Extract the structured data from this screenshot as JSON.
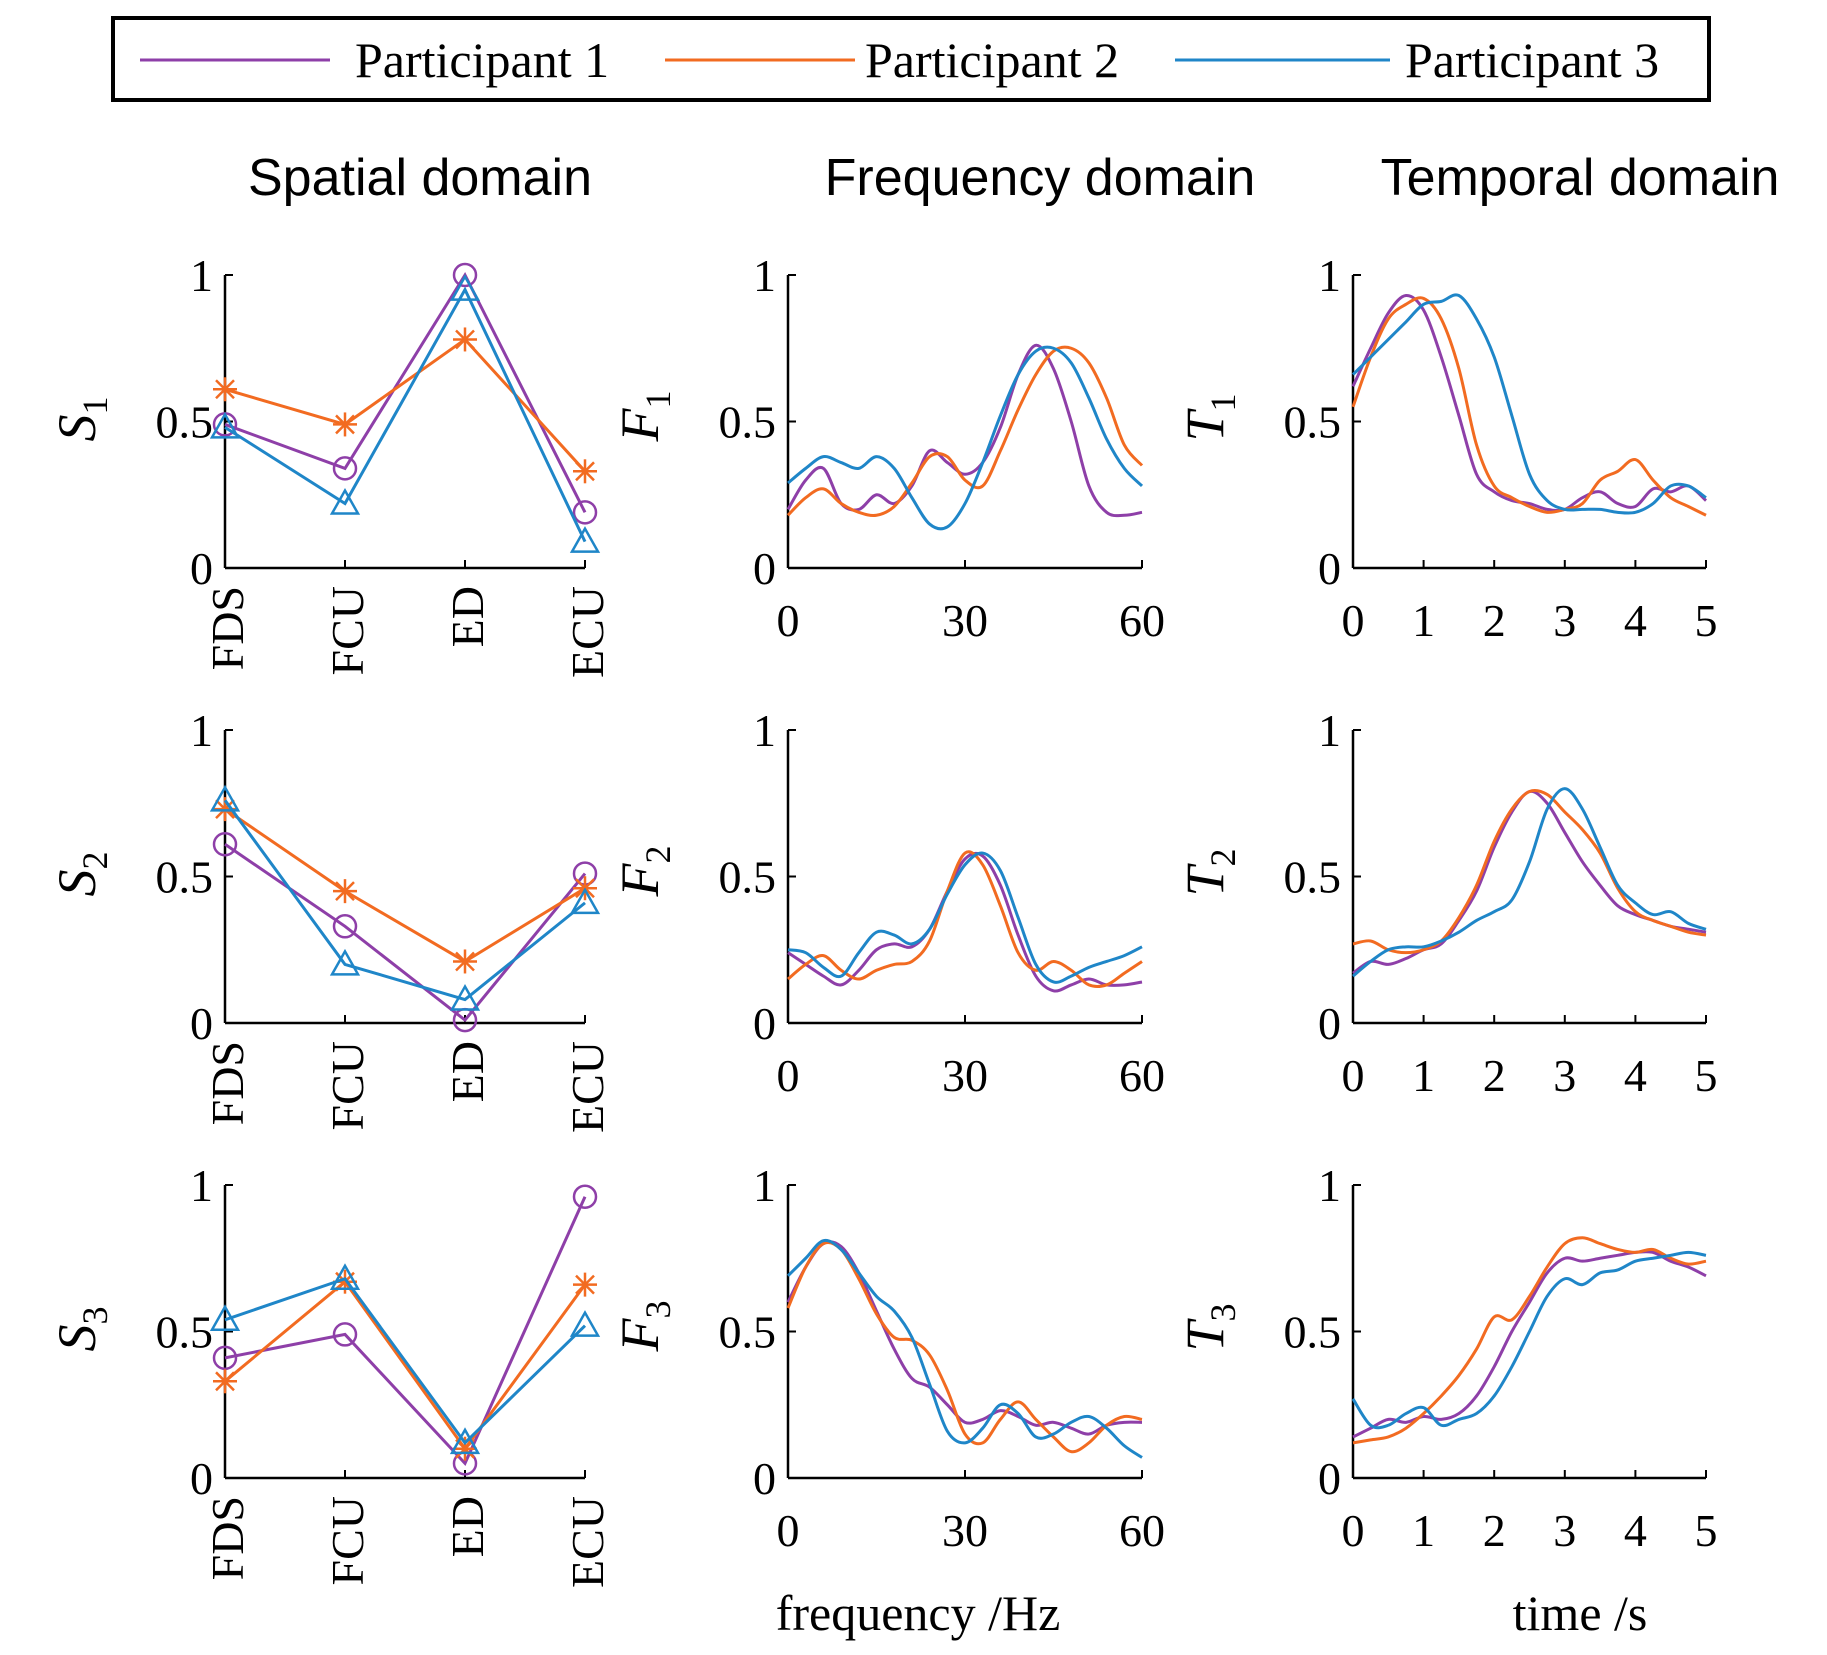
{
  "colors": {
    "p1": "#8e3fa8",
    "p2": "#f26b21",
    "p3": "#1f86c8",
    "axis": "#000000"
  },
  "legend": {
    "entries": [
      "Participant 1",
      "Participant 2",
      "Participant 3"
    ]
  },
  "column_titles": [
    "Spatial domain",
    "Frequency domain",
    "Temporal domain"
  ],
  "x_labels": {
    "frequency": "frequency /Hz",
    "time": "time /s"
  },
  "chart_data": [
    {
      "id": "S1",
      "type": "line",
      "domain": "spatial",
      "ylabel": "S",
      "ylabel_sub": "1",
      "ylim": [
        0,
        1
      ],
      "yticks": [
        "0",
        "0.5",
        "1"
      ],
      "categories": [
        "FDS",
        "FCU",
        "ED",
        "ECU"
      ],
      "series": [
        {
          "name": "Participant 1",
          "marker": "circle",
          "values": [
            0.49,
            0.34,
            1.0,
            0.19
          ]
        },
        {
          "name": "Participant 2",
          "marker": "asterisk",
          "values": [
            0.61,
            0.49,
            0.78,
            0.33
          ]
        },
        {
          "name": "Participant 3",
          "marker": "triangle",
          "values": [
            0.48,
            0.22,
            0.95,
            0.09
          ]
        }
      ]
    },
    {
      "id": "S2",
      "type": "line",
      "domain": "spatial",
      "ylabel": "S",
      "ylabel_sub": "2",
      "ylim": [
        0,
        1
      ],
      "yticks": [
        "0",
        "0.5",
        "1"
      ],
      "categories": [
        "FDS",
        "FCU",
        "ED",
        "ECU"
      ],
      "series": [
        {
          "name": "Participant 1",
          "marker": "circle",
          "values": [
            0.61,
            0.33,
            0.01,
            0.51
          ]
        },
        {
          "name": "Participant 2",
          "marker": "asterisk",
          "values": [
            0.73,
            0.45,
            0.21,
            0.46
          ]
        },
        {
          "name": "Participant 3",
          "marker": "triangle",
          "values": [
            0.76,
            0.2,
            0.08,
            0.41
          ]
        }
      ]
    },
    {
      "id": "S3",
      "type": "line",
      "domain": "spatial",
      "ylabel": "S",
      "ylabel_sub": "3",
      "ylim": [
        0,
        1
      ],
      "yticks": [
        "0",
        "0.5",
        "1"
      ],
      "categories": [
        "FDS",
        "FCU",
        "ED",
        "ECU"
      ],
      "series": [
        {
          "name": "Participant 1",
          "marker": "circle",
          "values": [
            0.41,
            0.49,
            0.05,
            0.96
          ]
        },
        {
          "name": "Participant 2",
          "marker": "asterisk",
          "values": [
            0.33,
            0.67,
            0.1,
            0.66
          ]
        },
        {
          "name": "Participant 3",
          "marker": "triangle",
          "values": [
            0.54,
            0.68,
            0.12,
            0.52
          ]
        }
      ]
    },
    {
      "id": "F1",
      "type": "line",
      "domain": "frequency",
      "ylabel": "F",
      "ylabel_sub": "1",
      "ylim": [
        0,
        1
      ],
      "xlim": [
        0,
        60
      ],
      "yticks": [
        "0",
        "0.5",
        "1"
      ],
      "xticks": [
        0,
        30,
        60
      ],
      "x": [
        0,
        3,
        6,
        9,
        12,
        15,
        18,
        21,
        24,
        27,
        30,
        33,
        36,
        39,
        42,
        45,
        48,
        51,
        54,
        57,
        60
      ],
      "series": [
        {
          "name": "Participant 1",
          "values": [
            0.2,
            0.3,
            0.34,
            0.22,
            0.2,
            0.25,
            0.22,
            0.28,
            0.4,
            0.36,
            0.32,
            0.36,
            0.48,
            0.66,
            0.76,
            0.68,
            0.5,
            0.28,
            0.19,
            0.18,
            0.19
          ]
        },
        {
          "name": "Participant 2",
          "values": [
            0.18,
            0.24,
            0.27,
            0.22,
            0.19,
            0.18,
            0.21,
            0.29,
            0.38,
            0.38,
            0.3,
            0.28,
            0.4,
            0.54,
            0.66,
            0.74,
            0.75,
            0.7,
            0.58,
            0.42,
            0.35
          ]
        },
        {
          "name": "Participant 3",
          "values": [
            0.29,
            0.34,
            0.38,
            0.36,
            0.34,
            0.38,
            0.34,
            0.24,
            0.15,
            0.14,
            0.22,
            0.36,
            0.52,
            0.66,
            0.74,
            0.75,
            0.7,
            0.58,
            0.44,
            0.34,
            0.28
          ]
        }
      ]
    },
    {
      "id": "F2",
      "type": "line",
      "domain": "frequency",
      "ylabel": "F",
      "ylabel_sub": "2",
      "ylim": [
        0,
        1
      ],
      "xlim": [
        0,
        60
      ],
      "yticks": [
        "0",
        "0.5",
        "1"
      ],
      "xticks": [
        0,
        30,
        60
      ],
      "x": [
        0,
        3,
        6,
        9,
        12,
        15,
        18,
        21,
        24,
        27,
        30,
        33,
        36,
        39,
        42,
        45,
        48,
        51,
        54,
        57,
        60
      ],
      "series": [
        {
          "name": "Participant 1",
          "values": [
            0.24,
            0.2,
            0.16,
            0.13,
            0.18,
            0.25,
            0.27,
            0.26,
            0.32,
            0.45,
            0.56,
            0.57,
            0.47,
            0.3,
            0.16,
            0.11,
            0.13,
            0.15,
            0.13,
            0.13,
            0.14
          ]
        },
        {
          "name": "Participant 2",
          "values": [
            0.15,
            0.2,
            0.23,
            0.18,
            0.15,
            0.18,
            0.2,
            0.21,
            0.28,
            0.45,
            0.58,
            0.54,
            0.4,
            0.24,
            0.18,
            0.21,
            0.18,
            0.13,
            0.13,
            0.17,
            0.21
          ]
        },
        {
          "name": "Participant 3",
          "values": [
            0.25,
            0.24,
            0.19,
            0.16,
            0.24,
            0.31,
            0.3,
            0.27,
            0.32,
            0.44,
            0.54,
            0.58,
            0.52,
            0.36,
            0.2,
            0.14,
            0.16,
            0.19,
            0.21,
            0.23,
            0.26
          ]
        }
      ]
    },
    {
      "id": "F3",
      "type": "line",
      "domain": "frequency",
      "ylabel": "F",
      "ylabel_sub": "3",
      "ylim": [
        0,
        1
      ],
      "xlim": [
        0,
        60
      ],
      "yticks": [
        "0",
        "0.5",
        "1"
      ],
      "xticks": [
        0,
        30,
        60
      ],
      "x": [
        0,
        3,
        6,
        9,
        12,
        15,
        18,
        21,
        24,
        27,
        30,
        33,
        36,
        39,
        42,
        45,
        48,
        51,
        54,
        57,
        60
      ],
      "series": [
        {
          "name": "Participant 1",
          "values": [
            0.6,
            0.72,
            0.8,
            0.79,
            0.7,
            0.57,
            0.44,
            0.34,
            0.31,
            0.25,
            0.19,
            0.2,
            0.23,
            0.21,
            0.18,
            0.19,
            0.17,
            0.15,
            0.18,
            0.19,
            0.19
          ]
        },
        {
          "name": "Participant 2",
          "values": [
            0.58,
            0.72,
            0.8,
            0.78,
            0.68,
            0.56,
            0.48,
            0.47,
            0.42,
            0.3,
            0.15,
            0.12,
            0.2,
            0.26,
            0.2,
            0.14,
            0.09,
            0.12,
            0.18,
            0.21,
            0.2
          ]
        },
        {
          "name": "Participant 3",
          "values": [
            0.69,
            0.75,
            0.81,
            0.78,
            0.7,
            0.62,
            0.57,
            0.48,
            0.32,
            0.16,
            0.12,
            0.17,
            0.25,
            0.22,
            0.14,
            0.15,
            0.19,
            0.21,
            0.17,
            0.11,
            0.07
          ]
        }
      ]
    },
    {
      "id": "T1",
      "type": "line",
      "domain": "temporal",
      "ylabel": "T",
      "ylabel_sub": "1",
      "ylim": [
        0,
        1
      ],
      "xlim": [
        0,
        5
      ],
      "yticks": [
        "0",
        "0.5",
        "1"
      ],
      "xticks": [
        0,
        1,
        2,
        3,
        4,
        5
      ],
      "x": [
        0,
        0.25,
        0.5,
        0.75,
        1,
        1.25,
        1.5,
        1.75,
        2,
        2.25,
        2.5,
        2.75,
        3,
        3.25,
        3.5,
        3.75,
        4,
        4.25,
        4.5,
        4.75,
        5
      ],
      "series": [
        {
          "name": "Participant 1",
          "values": [
            0.62,
            0.75,
            0.87,
            0.93,
            0.88,
            0.72,
            0.52,
            0.32,
            0.26,
            0.23,
            0.22,
            0.2,
            0.2,
            0.24,
            0.26,
            0.22,
            0.21,
            0.27,
            0.26,
            0.28,
            0.23
          ]
        },
        {
          "name": "Participant 2",
          "values": [
            0.55,
            0.72,
            0.85,
            0.9,
            0.92,
            0.85,
            0.68,
            0.42,
            0.28,
            0.24,
            0.21,
            0.19,
            0.2,
            0.22,
            0.3,
            0.33,
            0.37,
            0.3,
            0.24,
            0.21,
            0.18
          ]
        },
        {
          "name": "Participant 3",
          "values": [
            0.66,
            0.72,
            0.78,
            0.84,
            0.9,
            0.91,
            0.93,
            0.85,
            0.72,
            0.52,
            0.32,
            0.23,
            0.2,
            0.2,
            0.2,
            0.19,
            0.19,
            0.22,
            0.28,
            0.28,
            0.24
          ]
        }
      ]
    },
    {
      "id": "T2",
      "type": "line",
      "domain": "temporal",
      "ylabel": "T",
      "ylabel_sub": "2",
      "ylim": [
        0,
        1
      ],
      "xlim": [
        0,
        5
      ],
      "yticks": [
        "0",
        "0.5",
        "1"
      ],
      "xticks": [
        0,
        1,
        2,
        3,
        4,
        5
      ],
      "x": [
        0,
        0.25,
        0.5,
        0.75,
        1,
        1.25,
        1.5,
        1.75,
        2,
        2.25,
        2.5,
        2.75,
        3,
        3.25,
        3.5,
        3.75,
        4,
        4.25,
        4.5,
        4.75,
        5
      ],
      "series": [
        {
          "name": "Participant 1",
          "values": [
            0.17,
            0.21,
            0.2,
            0.22,
            0.25,
            0.27,
            0.35,
            0.45,
            0.6,
            0.72,
            0.79,
            0.75,
            0.65,
            0.55,
            0.47,
            0.4,
            0.37,
            0.35,
            0.33,
            0.32,
            0.31
          ]
        },
        {
          "name": "Participant 2",
          "values": [
            0.27,
            0.28,
            0.25,
            0.24,
            0.25,
            0.28,
            0.36,
            0.47,
            0.62,
            0.73,
            0.79,
            0.78,
            0.72,
            0.66,
            0.58,
            0.46,
            0.38,
            0.35,
            0.33,
            0.31,
            0.3
          ]
        },
        {
          "name": "Participant 3",
          "values": [
            0.16,
            0.21,
            0.25,
            0.26,
            0.26,
            0.28,
            0.31,
            0.35,
            0.38,
            0.42,
            0.55,
            0.73,
            0.8,
            0.73,
            0.6,
            0.47,
            0.41,
            0.37,
            0.38,
            0.34,
            0.32
          ]
        }
      ]
    },
    {
      "id": "T3",
      "type": "line",
      "domain": "temporal",
      "ylabel": "T",
      "ylabel_sub": "3",
      "ylim": [
        0,
        1
      ],
      "xlim": [
        0,
        5
      ],
      "yticks": [
        "0",
        "0.5",
        "1"
      ],
      "xticks": [
        0,
        1,
        2,
        3,
        4,
        5
      ],
      "x": [
        0,
        0.25,
        0.5,
        0.75,
        1,
        1.25,
        1.5,
        1.75,
        2,
        2.25,
        2.5,
        2.75,
        3,
        3.25,
        3.5,
        3.75,
        4,
        4.25,
        4.5,
        4.75,
        5
      ],
      "series": [
        {
          "name": "Participant 1",
          "values": [
            0.14,
            0.17,
            0.2,
            0.19,
            0.21,
            0.2,
            0.22,
            0.28,
            0.38,
            0.5,
            0.6,
            0.7,
            0.75,
            0.74,
            0.75,
            0.76,
            0.77,
            0.77,
            0.74,
            0.72,
            0.69
          ]
        },
        {
          "name": "Participant 2",
          "values": [
            0.12,
            0.13,
            0.14,
            0.17,
            0.22,
            0.28,
            0.35,
            0.44,
            0.55,
            0.54,
            0.62,
            0.72,
            0.8,
            0.82,
            0.8,
            0.78,
            0.77,
            0.78,
            0.75,
            0.73,
            0.74
          ]
        },
        {
          "name": "Participant 3",
          "values": [
            0.27,
            0.18,
            0.18,
            0.22,
            0.24,
            0.18,
            0.2,
            0.22,
            0.28,
            0.38,
            0.5,
            0.62,
            0.68,
            0.66,
            0.7,
            0.71,
            0.74,
            0.75,
            0.76,
            0.77,
            0.76
          ]
        }
      ]
    }
  ]
}
